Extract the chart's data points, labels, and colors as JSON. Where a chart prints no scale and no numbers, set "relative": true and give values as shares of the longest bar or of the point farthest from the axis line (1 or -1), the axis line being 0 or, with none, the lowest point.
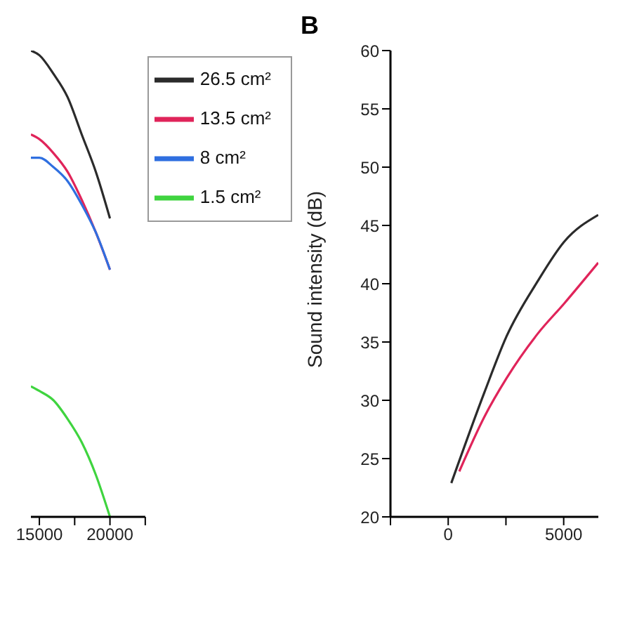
{
  "chart_data": [
    {
      "type": "line",
      "relative": true,
      "xlim": [
        14400,
        22500
      ],
      "xticks": [
        15000,
        {
          "value": 17500,
          "label": null
        },
        20000,
        {
          "value": 22500,
          "label": null
        }
      ],
      "legend": "top right",
      "x": [
        14400,
        15000,
        16000,
        17000,
        18000,
        19000,
        20000
      ],
      "series": [
        {
          "name": "26.5 cm²",
          "color": "#2b2b2b",
          "values": [
            1,
            0.99,
            0.95,
            0.9,
            0.82,
            0.74,
            0.64
          ]
        },
        {
          "name": "13.5 cm²",
          "color": "#e0245a",
          "values": [
            0.82,
            0.81,
            0.78,
            0.74,
            0.68,
            0.61,
            0.53
          ]
        },
        {
          "name": "8 cm²",
          "color": "#2f6fe0",
          "values": [
            0.77,
            0.77,
            0.75,
            0.72,
            0.67,
            0.61,
            0.53
          ]
        },
        {
          "name": "1.5 cm²",
          "color": "#3fd43f",
          "values": [
            0.28,
            0.27,
            0.25,
            0.21,
            0.16,
            0.09,
            0
          ]
        }
      ]
    },
    {
      "type": "line",
      "title": "B",
      "ylabel": "Sound intensity (dB)",
      "xlim": [
        -2500,
        6500
      ],
      "xticks": [
        {
          "value": -2500,
          "label": null
        },
        0,
        {
          "value": 2500,
          "label": null
        },
        5000
      ],
      "ylim": [
        20,
        60
      ],
      "yticks": [
        20,
        25,
        30,
        35,
        40,
        45,
        50,
        55,
        60
      ],
      "series": [
        {
          "color": "#2b2b2b",
          "x": [
            134,
            1571,
            2529,
            3870,
            5020,
            6495
          ],
          "values": [
            22.9,
            30.7,
            35.5,
            40.2,
            43.6,
            45.9
          ]
        },
        {
          "color": "#e0245a",
          "x": [
            479,
            1571,
            2529,
            3870,
            5020,
            6495
          ],
          "values": [
            23.9,
            28.6,
            31.9,
            35.7,
            38.3,
            41.8
          ]
        }
      ]
    }
  ]
}
